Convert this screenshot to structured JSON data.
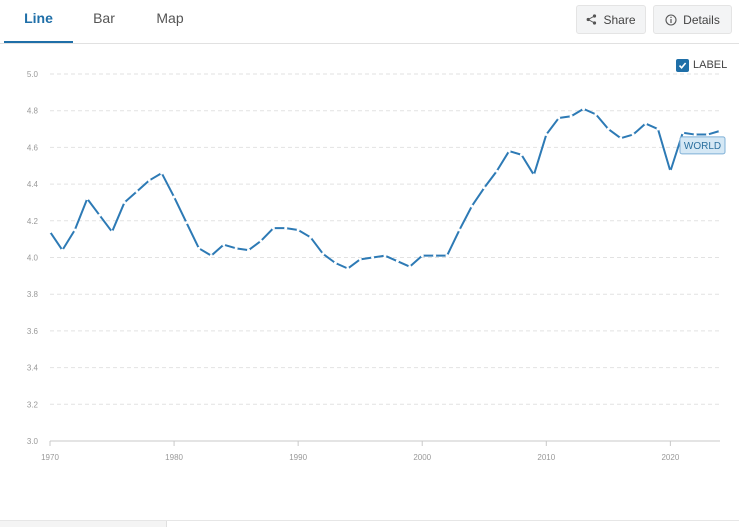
{
  "tabs": [
    {
      "label": "Line",
      "active": true
    },
    {
      "label": "Bar",
      "active": false
    },
    {
      "label": "Map",
      "active": false
    }
  ],
  "actions": {
    "share_label": "Share",
    "details_label": "Details"
  },
  "label_toggle": {
    "label": "LABEL",
    "checked": true
  },
  "colors": {
    "accent": "#1f6fa8",
    "series_line": "#2d7ab5",
    "grid": "#e2e2e2"
  },
  "chart_data": {
    "type": "line",
    "title": "",
    "xlabel": "",
    "ylabel": "",
    "xlim": [
      1970,
      2024
    ],
    "ylim": [
      3.0,
      5.0
    ],
    "x_ticks": [
      1970,
      1980,
      1990,
      2000,
      2010,
      2020
    ],
    "y_ticks": [
      "3.0",
      "3.2",
      "3.4",
      "3.6",
      "3.8",
      "4.0",
      "4.2",
      "4.4",
      "4.6",
      "4.8",
      "5.0"
    ],
    "grid": true,
    "series": [
      {
        "name": "WORLD",
        "x": [
          1970,
          1971,
          1972,
          1973,
          1974,
          1975,
          1976,
          1977,
          1978,
          1979,
          1980,
          1981,
          1982,
          1983,
          1984,
          1985,
          1986,
          1987,
          1988,
          1989,
          1990,
          1991,
          1992,
          1993,
          1994,
          1995,
          1996,
          1997,
          1998,
          1999,
          2000,
          2001,
          2002,
          2003,
          2004,
          2005,
          2006,
          2007,
          2008,
          2009,
          2010,
          2011,
          2012,
          2013,
          2014,
          2015,
          2016,
          2017,
          2018,
          2019,
          2020,
          2021,
          2022,
          2023,
          2024
        ],
        "values": [
          4.14,
          4.04,
          4.15,
          4.32,
          4.23,
          4.14,
          4.3,
          4.36,
          4.42,
          4.46,
          4.33,
          4.19,
          4.05,
          4.01,
          4.07,
          4.05,
          4.04,
          4.09,
          4.16,
          4.16,
          4.15,
          4.11,
          4.02,
          3.97,
          3.94,
          3.99,
          4.0,
          4.01,
          3.98,
          3.95,
          4.01,
          4.01,
          4.01,
          4.15,
          4.28,
          4.38,
          4.47,
          4.58,
          4.56,
          4.45,
          4.67,
          4.76,
          4.77,
          4.81,
          4.78,
          4.7,
          4.65,
          4.67,
          4.73,
          4.7,
          4.47,
          4.68,
          4.67,
          4.67,
          4.69
        ]
      }
    ]
  }
}
